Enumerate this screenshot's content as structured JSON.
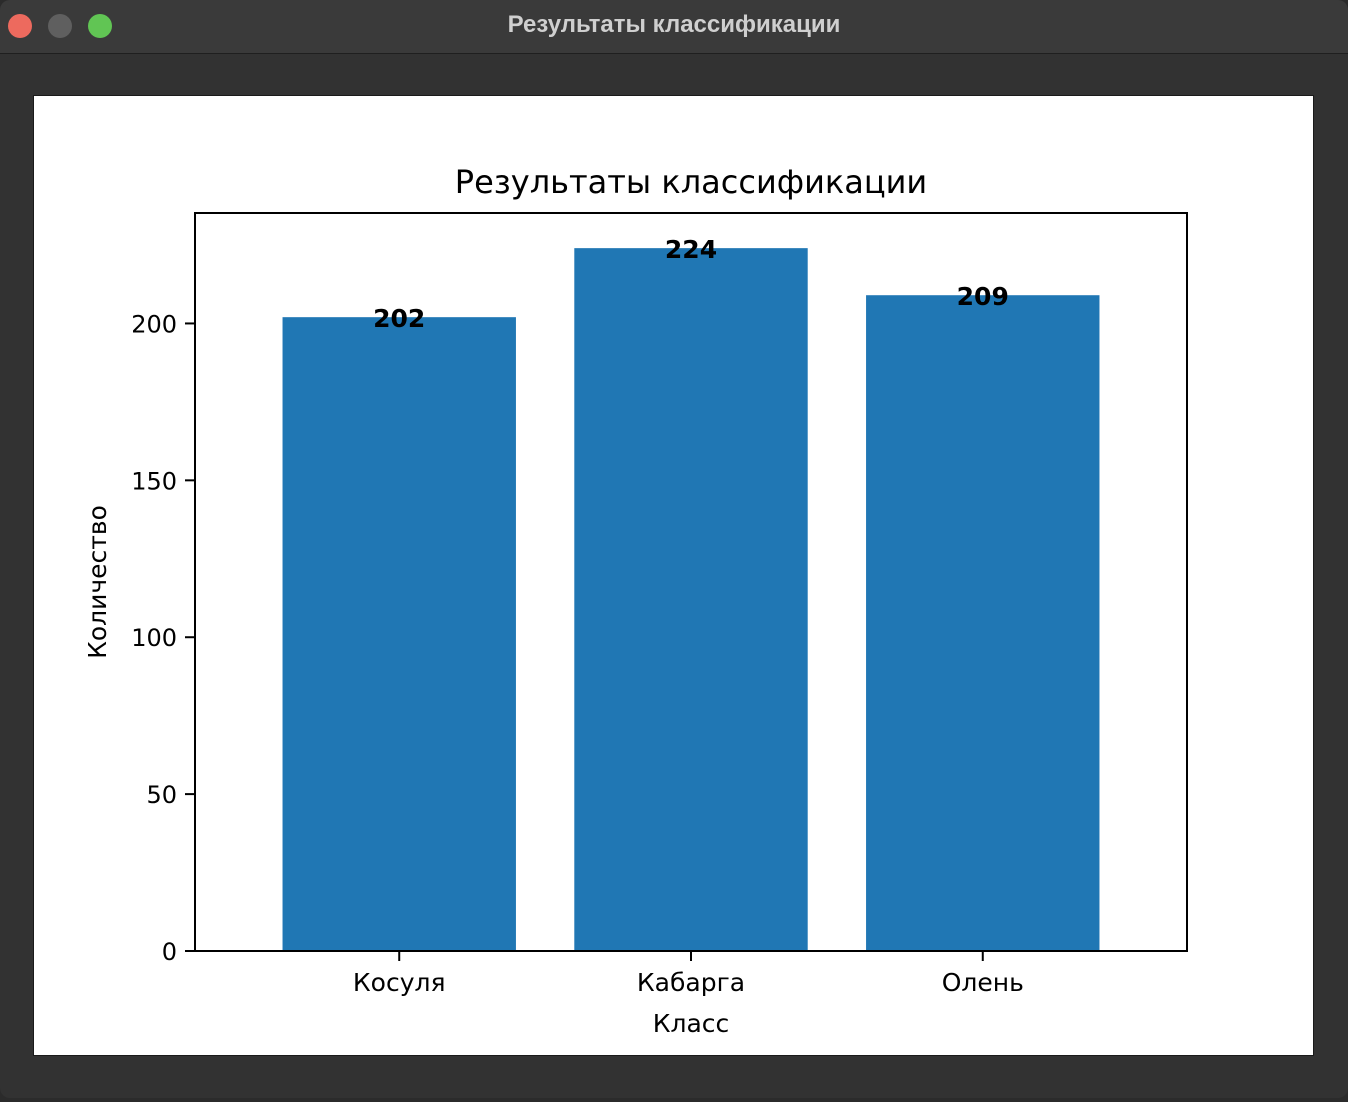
{
  "window": {
    "title": "Результаты классификации",
    "buttons": [
      "close",
      "minimize",
      "maximize"
    ]
  },
  "chart_data": {
    "type": "bar",
    "title": "Результаты классификации",
    "xlabel": "Класс",
    "ylabel": "Количество",
    "categories": [
      "Косуля",
      "Кабарга",
      "Олень"
    ],
    "values": [
      202,
      224,
      209
    ],
    "value_labels": [
      "202",
      "224",
      "209"
    ],
    "yticks": [
      0,
      50,
      100,
      150,
      200
    ],
    "ylim": [
      0,
      235.2
    ],
    "bar_color": "#2077b4",
    "grid": false,
    "legend": "none"
  }
}
